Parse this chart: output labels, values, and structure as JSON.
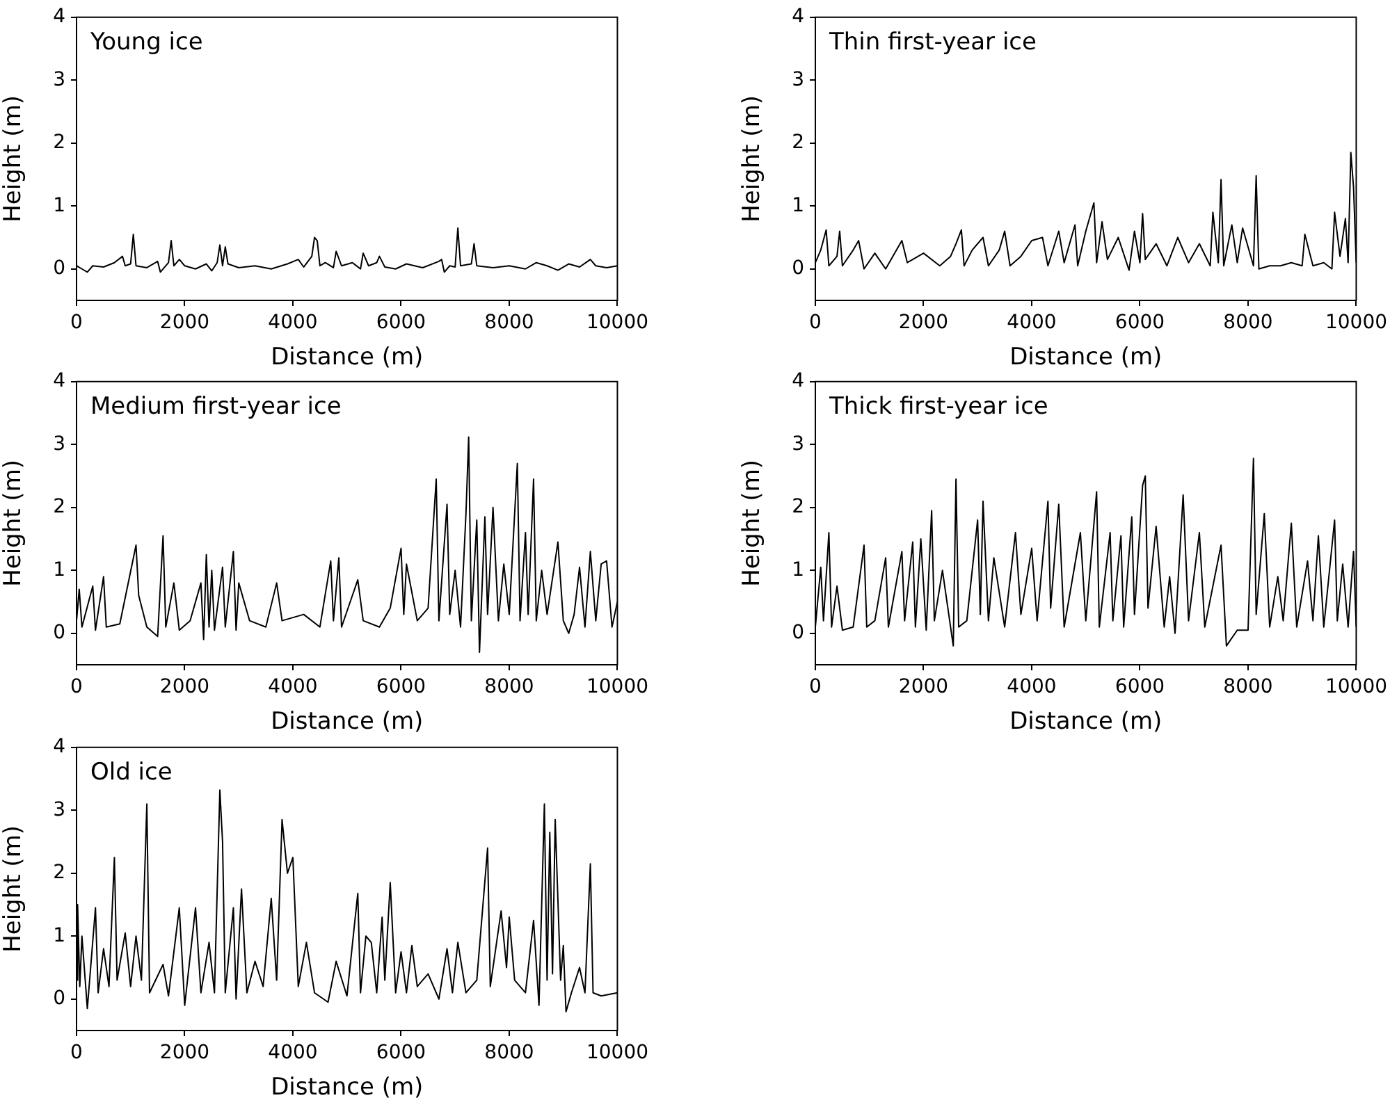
{
  "chart_data": [
    {
      "type": "line",
      "annotations": [
        "Young ice"
      ],
      "xlabel": "Distance (m)",
      "ylabel": "Height (m)",
      "color": "#000000",
      "marker": "none",
      "xlim": [
        0,
        10000
      ],
      "ylim": [
        -0.5,
        4
      ],
      "xticks": [
        0,
        2000,
        4000,
        6000,
        8000,
        10000
      ],
      "yticks": [
        0,
        1,
        2,
        3,
        4
      ],
      "x": [
        0,
        100,
        200,
        300,
        500,
        700,
        850,
        900,
        1000,
        1050,
        1100,
        1300,
        1500,
        1550,
        1700,
        1750,
        1800,
        1900,
        2000,
        2200,
        2400,
        2500,
        2600,
        2650,
        2700,
        2750,
        2800,
        3000,
        3300,
        3600,
        3900,
        4100,
        4200,
        4350,
        4400,
        4450,
        4500,
        4600,
        4750,
        4800,
        4900,
        5100,
        5250,
        5300,
        5400,
        5550,
        5600,
        5700,
        5900,
        6100,
        6400,
        6700,
        6750,
        6800,
        6900,
        7000,
        7050,
        7100,
        7300,
        7350,
        7400,
        7700,
        8000,
        8300,
        8500,
        8700,
        8900,
        9100,
        9300,
        9450,
        9500,
        9600,
        9800,
        10000
      ],
      "values": [
        0.05,
        0.0,
        -0.05,
        0.05,
        0.03,
        0.1,
        0.2,
        0.05,
        0.08,
        0.55,
        0.05,
        0.02,
        0.12,
        -0.05,
        0.1,
        0.45,
        0.05,
        0.15,
        0.05,
        0.0,
        0.08,
        -0.03,
        0.1,
        0.38,
        0.05,
        0.35,
        0.08,
        0.02,
        0.05,
        0.0,
        0.08,
        0.15,
        0.03,
        0.2,
        0.5,
        0.45,
        0.05,
        0.1,
        0.02,
        0.28,
        0.05,
        0.1,
        0.0,
        0.25,
        0.05,
        0.1,
        0.2,
        0.03,
        0.0,
        0.08,
        0.02,
        0.12,
        0.15,
        -0.05,
        0.05,
        0.03,
        0.65,
        0.05,
        0.08,
        0.4,
        0.05,
        0.02,
        0.05,
        0.0,
        0.1,
        0.05,
        -0.02,
        0.08,
        0.03,
        0.12,
        0.15,
        0.05,
        0.02,
        0.05
      ]
    },
    {
      "type": "line",
      "annotations": [
        "Thin first-year ice"
      ],
      "xlabel": "Distance (m)",
      "ylabel": "Height (m)",
      "color": "#000000",
      "marker": "none",
      "xlim": [
        0,
        10000
      ],
      "ylim": [
        -0.5,
        4
      ],
      "xticks": [
        0,
        2000,
        4000,
        6000,
        8000,
        10000
      ],
      "yticks": [
        0,
        1,
        2,
        3,
        4
      ],
      "x": [
        0,
        100,
        200,
        250,
        400,
        450,
        500,
        700,
        800,
        900,
        1100,
        1300,
        1500,
        1600,
        1700,
        2000,
        2300,
        2500,
        2600,
        2700,
        2750,
        2900,
        3100,
        3200,
        3400,
        3500,
        3600,
        3800,
        4000,
        4200,
        4300,
        4500,
        4600,
        4800,
        4850,
        5000,
        5150,
        5200,
        5300,
        5400,
        5600,
        5800,
        5900,
        6000,
        6050,
        6100,
        6300,
        6500,
        6700,
        6900,
        7100,
        7300,
        7350,
        7450,
        7500,
        7550,
        7700,
        7800,
        7900,
        8100,
        8150,
        8200,
        8400,
        8600,
        8800,
        9000,
        9050,
        9200,
        9400,
        9550,
        9600,
        9700,
        9800,
        9850,
        9900,
        9950,
        10000
      ],
      "values": [
        0.1,
        0.3,
        0.62,
        0.05,
        0.2,
        0.6,
        0.05,
        0.3,
        0.45,
        0.0,
        0.25,
        0.0,
        0.3,
        0.45,
        0.1,
        0.25,
        0.05,
        0.2,
        0.4,
        0.62,
        0.05,
        0.3,
        0.5,
        0.05,
        0.3,
        0.6,
        0.05,
        0.2,
        0.45,
        0.5,
        0.05,
        0.6,
        0.1,
        0.7,
        0.05,
        0.6,
        1.05,
        0.1,
        0.75,
        0.15,
        0.5,
        -0.02,
        0.6,
        0.1,
        0.88,
        0.15,
        0.4,
        0.05,
        0.5,
        0.1,
        0.4,
        0.05,
        0.9,
        0.1,
        1.42,
        0.05,
        0.7,
        0.1,
        0.65,
        0.05,
        1.48,
        0.0,
        0.05,
        0.05,
        0.1,
        0.05,
        0.55,
        0.05,
        0.1,
        0.0,
        0.9,
        0.2,
        0.8,
        0.1,
        1.85,
        1.3,
        0.1
      ]
    },
    {
      "type": "line",
      "annotations": [
        "Medium first-year ice"
      ],
      "xlabel": "Distance (m)",
      "ylabel": "Height (m)",
      "color": "#000000",
      "marker": "none",
      "xlim": [
        0,
        10000
      ],
      "ylim": [
        -0.5,
        4
      ],
      "xticks": [
        0,
        2000,
        4000,
        6000,
        8000,
        10000
      ],
      "yticks": [
        0,
        1,
        2,
        3,
        4
      ],
      "x": [
        0,
        50,
        100,
        300,
        350,
        500,
        550,
        800,
        1100,
        1150,
        1300,
        1500,
        1600,
        1650,
        1800,
        1900,
        2100,
        2300,
        2350,
        2400,
        2450,
        2500,
        2550,
        2700,
        2750,
        2900,
        2950,
        3000,
        3200,
        3500,
        3700,
        3800,
        4200,
        4500,
        4700,
        4750,
        4850,
        4900,
        5200,
        5300,
        5600,
        5800,
        6000,
        6050,
        6100,
        6300,
        6500,
        6650,
        6700,
        6850,
        6900,
        7000,
        7100,
        7200,
        7250,
        7300,
        7400,
        7450,
        7550,
        7600,
        7700,
        7800,
        7900,
        8000,
        8150,
        8200,
        8300,
        8350,
        8450,
        8500,
        8600,
        8700,
        8900,
        9000,
        9100,
        9200,
        9300,
        9400,
        9500,
        9600,
        9700,
        9800,
        9900,
        10000
      ],
      "values": [
        0.2,
        0.7,
        0.1,
        0.75,
        0.05,
        0.9,
        0.1,
        0.15,
        1.4,
        0.6,
        0.1,
        -0.05,
        1.55,
        0.1,
        0.8,
        0.05,
        0.2,
        0.8,
        -0.1,
        1.25,
        0.1,
        1.0,
        0.05,
        1.05,
        0.1,
        1.3,
        0.05,
        0.8,
        0.2,
        0.1,
        0.8,
        0.2,
        0.3,
        0.1,
        1.15,
        0.2,
        1.2,
        0.1,
        0.85,
        0.2,
        0.1,
        0.4,
        1.35,
        0.3,
        1.1,
        0.2,
        0.4,
        2.45,
        0.2,
        2.05,
        0.3,
        1.0,
        0.1,
        1.9,
        3.12,
        0.2,
        1.8,
        -0.3,
        1.85,
        0.3,
        2.0,
        0.2,
        1.1,
        0.3,
        2.7,
        0.2,
        1.6,
        0.3,
        2.45,
        0.2,
        1.0,
        0.3,
        1.45,
        0.2,
        0.0,
        0.3,
        1.05,
        0.1,
        1.3,
        0.2,
        1.1,
        1.15,
        0.1,
        0.5
      ]
    },
    {
      "type": "line",
      "annotations": [
        "Thick first-year ice"
      ],
      "xlabel": "Distance (m)",
      "ylabel": "Height (m)",
      "color": "#000000",
      "marker": "none",
      "xlim": [
        0,
        10000
      ],
      "ylim": [
        -0.5,
        4
      ],
      "xticks": [
        0,
        2000,
        4000,
        6000,
        8000,
        10000
      ],
      "yticks": [
        0,
        1,
        2,
        3,
        4
      ],
      "x": [
        0,
        100,
        150,
        250,
        300,
        400,
        500,
        700,
        900,
        950,
        1100,
        1300,
        1350,
        1600,
        1650,
        1800,
        1850,
        1950,
        2050,
        2150,
        2200,
        2350,
        2550,
        2600,
        2650,
        2800,
        3000,
        3050,
        3100,
        3200,
        3300,
        3500,
        3700,
        3800,
        4000,
        4100,
        4300,
        4350,
        4500,
        4600,
        4900,
        5000,
        5200,
        5250,
        5450,
        5500,
        5650,
        5700,
        5850,
        5900,
        6050,
        6100,
        6150,
        6300,
        6450,
        6550,
        6650,
        6800,
        6900,
        7100,
        7200,
        7500,
        7600,
        7800,
        8000,
        8100,
        8150,
        8300,
        8400,
        8550,
        8650,
        8800,
        8900,
        9100,
        9200,
        9300,
        9400,
        9600,
        9650,
        9750,
        9850,
        9950,
        10000
      ],
      "values": [
        0.1,
        1.05,
        0.2,
        1.6,
        0.1,
        0.75,
        0.05,
        0.1,
        1.4,
        0.1,
        0.2,
        1.2,
        0.1,
        1.3,
        0.2,
        1.45,
        0.1,
        1.5,
        0.05,
        1.95,
        0.2,
        1.0,
        -0.2,
        2.45,
        0.1,
        0.2,
        1.8,
        0.3,
        2.1,
        0.2,
        1.2,
        0.1,
        1.6,
        0.3,
        1.35,
        0.2,
        2.1,
        0.4,
        2.05,
        0.1,
        1.6,
        0.2,
        2.25,
        0.1,
        1.6,
        0.2,
        1.55,
        0.1,
        1.85,
        0.3,
        2.35,
        2.5,
        0.4,
        1.7,
        0.1,
        0.9,
        0.0,
        2.2,
        0.2,
        1.6,
        0.1,
        1.4,
        -0.2,
        0.05,
        0.05,
        2.78,
        0.3,
        1.9,
        0.1,
        0.9,
        0.2,
        1.75,
        0.1,
        1.15,
        0.2,
        1.55,
        0.1,
        1.8,
        0.2,
        1.1,
        0.1,
        1.3,
        0.1
      ]
    },
    {
      "type": "line",
      "annotations": [
        "Old ice"
      ],
      "xlabel": "Distance (m)",
      "ylabel": "Height (m)",
      "color": "#000000",
      "marker": "none",
      "xlim": [
        0,
        10000
      ],
      "ylim": [
        -0.5,
        4
      ],
      "xticks": [
        0,
        2000,
        4000,
        6000,
        8000,
        10000
      ],
      "yticks": [
        0,
        1,
        2,
        3,
        4
      ],
      "x": [
        0,
        20,
        60,
        100,
        200,
        350,
        400,
        500,
        600,
        700,
        750,
        900,
        1000,
        1100,
        1200,
        1300,
        1350,
        1600,
        1700,
        1900,
        2000,
        2200,
        2300,
        2450,
        2550,
        2650,
        2700,
        2750,
        2900,
        2950,
        3050,
        3150,
        3300,
        3450,
        3600,
        3700,
        3800,
        3900,
        4000,
        4100,
        4250,
        4400,
        4650,
        4800,
        5000,
        5200,
        5250,
        5350,
        5450,
        5550,
        5650,
        5700,
        5800,
        5900,
        6000,
        6100,
        6200,
        6300,
        6500,
        6700,
        6850,
        6950,
        7050,
        7200,
        7400,
        7600,
        7650,
        7850,
        7950,
        8000,
        8100,
        8300,
        8450,
        8550,
        8650,
        8700,
        8750,
        8800,
        8850,
        8950,
        9000,
        9050,
        9150,
        9300,
        9400,
        9500,
        9550,
        9700,
        10000
      ],
      "values": [
        0.3,
        1.5,
        0.2,
        1.0,
        -0.15,
        1.45,
        0.1,
        0.8,
        0.2,
        2.25,
        0.3,
        1.05,
        0.2,
        1.0,
        0.3,
        3.1,
        0.1,
        0.55,
        0.05,
        1.45,
        -0.1,
        1.45,
        0.1,
        0.9,
        0.1,
        3.32,
        2.5,
        0.1,
        1.45,
        0.0,
        1.75,
        0.1,
        0.6,
        0.2,
        1.6,
        0.3,
        2.85,
        2.0,
        2.25,
        0.2,
        0.9,
        0.1,
        -0.05,
        0.6,
        0.05,
        1.68,
        0.1,
        1.0,
        0.9,
        0.1,
        1.3,
        0.3,
        1.85,
        0.1,
        0.75,
        0.1,
        0.85,
        0.2,
        0.4,
        0.0,
        0.8,
        0.1,
        0.9,
        0.1,
        0.3,
        2.4,
        0.2,
        1.4,
        0.5,
        1.3,
        0.3,
        0.1,
        1.25,
        -0.1,
        3.1,
        0.3,
        2.65,
        0.4,
        2.85,
        0.3,
        0.85,
        -0.2,
        0.1,
        0.5,
        0.1,
        2.15,
        0.1,
        0.05,
        0.1
      ]
    }
  ]
}
